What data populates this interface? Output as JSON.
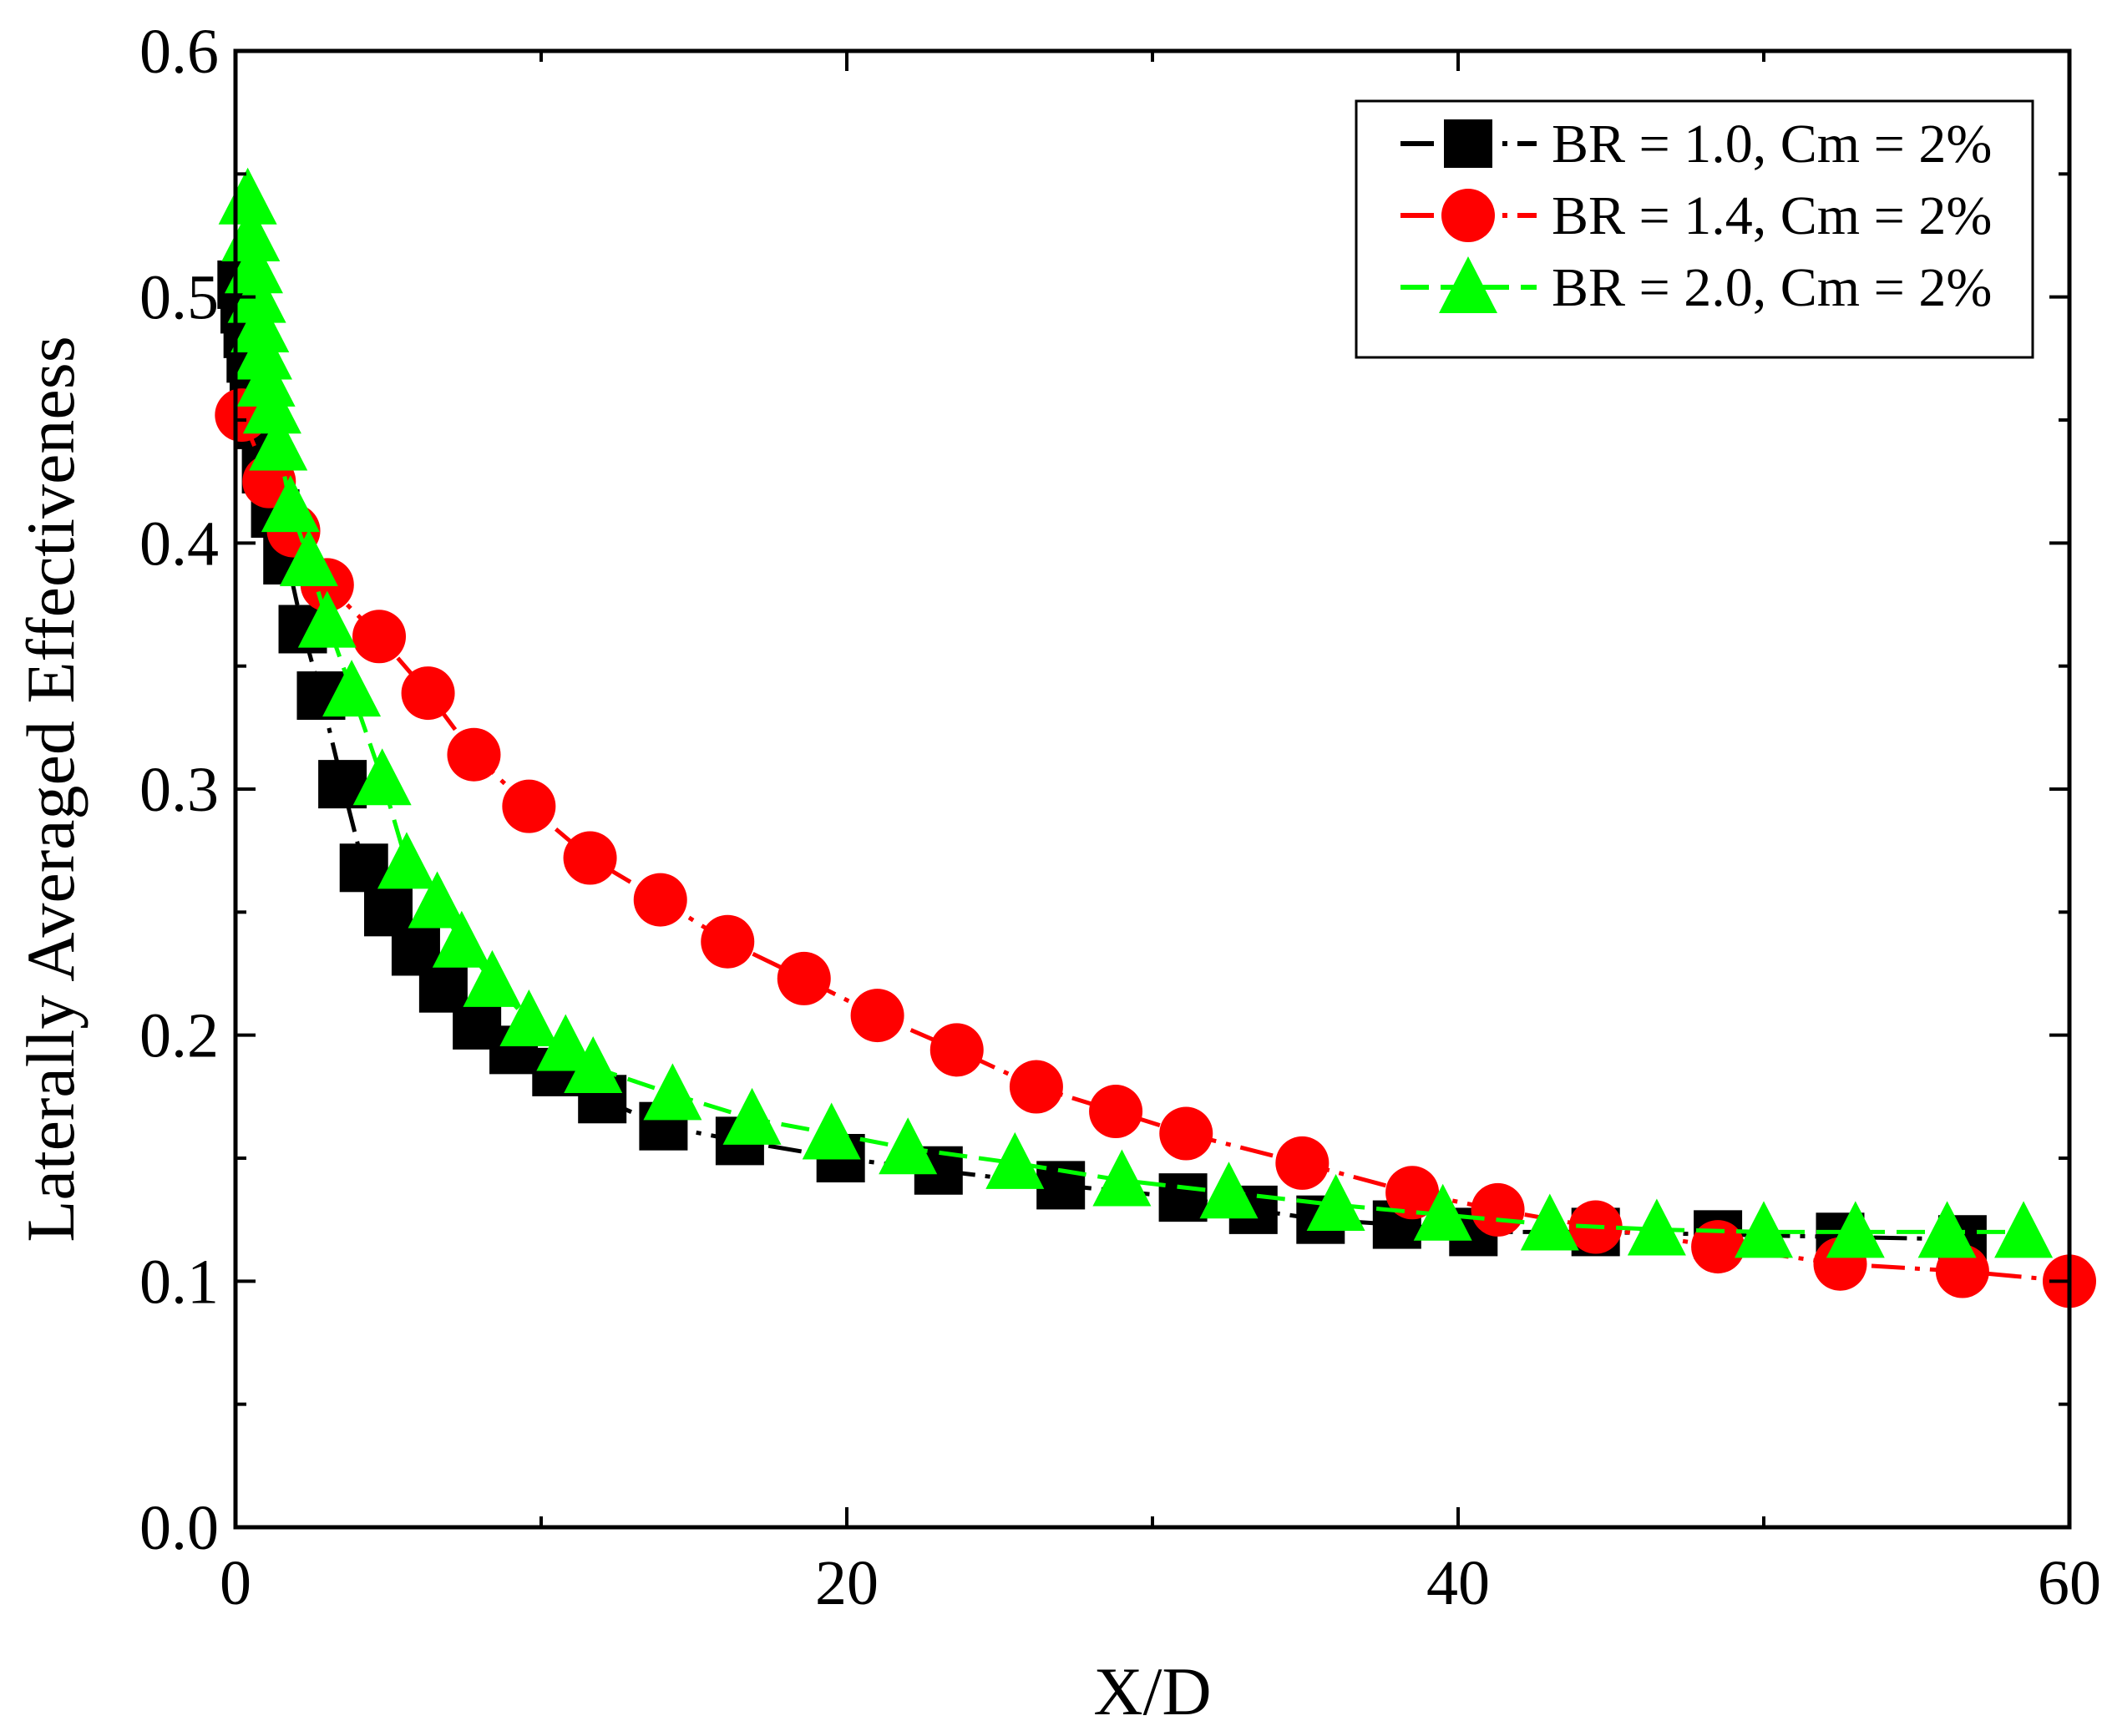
{
  "chart_data": {
    "type": "line",
    "xlabel": "X/D",
    "ylabel": "Laterally Averaged Effectiveness",
    "xlim": [
      0,
      60
    ],
    "ylim": [
      0,
      0.6
    ],
    "xticks": [
      0,
      20,
      40,
      60
    ],
    "xtick_labels": [
      "0",
      "20",
      "40",
      "60"
    ],
    "yticks": [
      0,
      0.1,
      0.2,
      0.3,
      0.4,
      0.5,
      0.6
    ],
    "ytick_labels": [
      "0.0",
      "0.1",
      "0.2",
      "0.3",
      "0.4",
      "0.5",
      "0.6"
    ],
    "legend_position": "top-right",
    "series": [
      {
        "name": "BR = 1.0, Cm = 2%",
        "color": "#000000",
        "marker": "square",
        "line_style": "dash-dot",
        "x": [
          0.2,
          0.3,
          0.4,
          0.5,
          0.6,
          0.7,
          0.8,
          1.0,
          1.3,
          1.7,
          2.2,
          2.8,
          3.5,
          4.2,
          5.0,
          5.9,
          6.8,
          7.9,
          9.1,
          10.5,
          12.0,
          14.0,
          16.5,
          19.8,
          23.0,
          27.0,
          31.0,
          33.3,
          35.5,
          38.0,
          40.5,
          44.5,
          48.5,
          52.5,
          56.5
        ],
        "y": [
          0.505,
          0.495,
          0.485,
          0.475,
          0.465,
          0.455,
          0.448,
          0.43,
          0.412,
          0.393,
          0.365,
          0.338,
          0.302,
          0.268,
          0.25,
          0.234,
          0.219,
          0.204,
          0.194,
          0.185,
          0.174,
          0.163,
          0.157,
          0.15,
          0.145,
          0.139,
          0.134,
          0.129,
          0.125,
          0.123,
          0.12,
          0.12,
          0.119,
          0.118,
          0.117
        ]
      },
      {
        "name": "BR = 1.4, Cm = 2%",
        "color": "#ff0000",
        "marker": "circle",
        "line_style": "dash-dot",
        "x": [
          0.2,
          1.1,
          1.9,
          3.0,
          4.7,
          6.3,
          7.8,
          9.6,
          11.6,
          13.9,
          16.1,
          18.6,
          21.0,
          23.6,
          26.2,
          28.8,
          31.1,
          34.9,
          38.5,
          41.3,
          44.5,
          48.5,
          52.5,
          56.5,
          60.0
        ],
        "y": [
          0.452,
          0.425,
          0.405,
          0.383,
          0.362,
          0.339,
          0.314,
          0.293,
          0.272,
          0.255,
          0.238,
          0.223,
          0.208,
          0.194,
          0.179,
          0.169,
          0.16,
          0.148,
          0.136,
          0.129,
          0.122,
          0.114,
          0.107,
          0.104,
          0.1
        ]
      },
      {
        "name": "BR = 2.0, Cm = 2%",
        "color": "#00ff00",
        "marker": "triangle",
        "line_style": "dash",
        "x": [
          0.4,
          0.5,
          0.6,
          0.7,
          0.8,
          0.9,
          1.0,
          1.2,
          1.4,
          1.8,
          2.4,
          3.0,
          3.8,
          4.8,
          5.6,
          6.6,
          7.4,
          8.4,
          9.6,
          10.8,
          11.7,
          14.3,
          16.9,
          19.5,
          22.0,
          25.5,
          29.0,
          32.5,
          36.0,
          39.5,
          43.0,
          46.5,
          50.0,
          53.0,
          56.0,
          58.5
        ],
        "y": [
          0.54,
          0.525,
          0.512,
          0.5,
          0.488,
          0.477,
          0.466,
          0.455,
          0.44,
          0.415,
          0.393,
          0.368,
          0.34,
          0.304,
          0.27,
          0.254,
          0.238,
          0.222,
          0.206,
          0.196,
          0.187,
          0.176,
          0.166,
          0.16,
          0.154,
          0.148,
          0.141,
          0.136,
          0.131,
          0.127,
          0.123,
          0.121,
          0.12,
          0.12,
          0.12,
          0.12
        ]
      }
    ]
  }
}
